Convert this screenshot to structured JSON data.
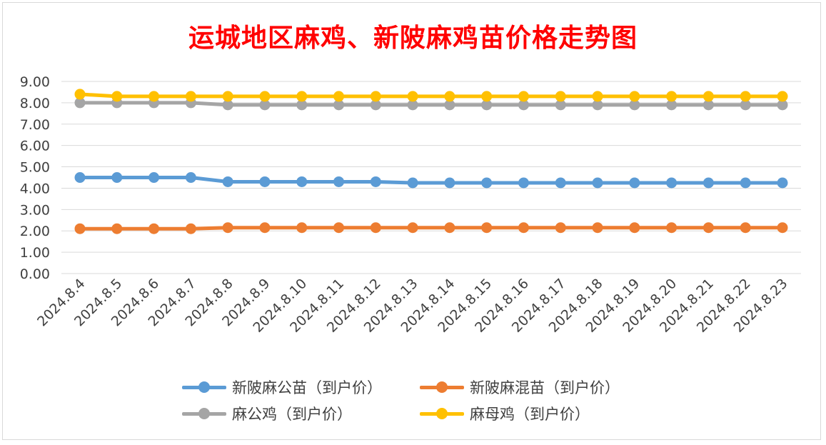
{
  "chart_data": {
    "type": "line",
    "title": "运城地区麻鸡、新陂麻鸡苗价格走势图",
    "categories": [
      "2024.8.4",
      "2024.8.5",
      "2024.8.6",
      "2024.8.7",
      "2024.8.8",
      "2024.8.9",
      "2024.8.10",
      "2024.8.11",
      "2024.8.12",
      "2024.8.13",
      "2024.8.14",
      "2024.8.15",
      "2024.8.16",
      "2024.8.17",
      "2024.8.18",
      "2024.8.19",
      "2024.8.20",
      "2024.8.21",
      "2024.8.22",
      "2024.8.23"
    ],
    "ylim": [
      0,
      9
    ],
    "ytick_labels": [
      "0.00",
      "1.00",
      "2.00",
      "3.00",
      "4.00",
      "5.00",
      "6.00",
      "7.00",
      "8.00",
      "9.00"
    ],
    "grid": true,
    "legend_position": "bottom",
    "series": [
      {
        "name": "新陂麻公苗（到户价）",
        "color": "#5b9bd5",
        "values": [
          4.5,
          4.5,
          4.5,
          4.5,
          4.3,
          4.3,
          4.3,
          4.3,
          4.3,
          4.25,
          4.25,
          4.25,
          4.25,
          4.25,
          4.25,
          4.25,
          4.25,
          4.25,
          4.25,
          4.25
        ]
      },
      {
        "name": "新陂麻混苗（到户价）",
        "color": "#ed7d31",
        "values": [
          2.1,
          2.1,
          2.1,
          2.1,
          2.15,
          2.15,
          2.15,
          2.15,
          2.15,
          2.15,
          2.15,
          2.15,
          2.15,
          2.15,
          2.15,
          2.15,
          2.15,
          2.15,
          2.15,
          2.15
        ]
      },
      {
        "name": "麻公鸡（到户价）",
        "color": "#a5a5a5",
        "values": [
          8.0,
          8.0,
          8.0,
          8.0,
          7.9,
          7.9,
          7.9,
          7.9,
          7.9,
          7.9,
          7.9,
          7.9,
          7.9,
          7.9,
          7.9,
          7.9,
          7.9,
          7.9,
          7.9,
          7.9
        ]
      },
      {
        "name": "麻母鸡（到户价）",
        "color": "#ffc000",
        "values": [
          8.4,
          8.3,
          8.3,
          8.3,
          8.3,
          8.3,
          8.3,
          8.3,
          8.3,
          8.3,
          8.3,
          8.3,
          8.3,
          8.3,
          8.3,
          8.3,
          8.3,
          8.3,
          8.3,
          8.3
        ]
      }
    ]
  }
}
